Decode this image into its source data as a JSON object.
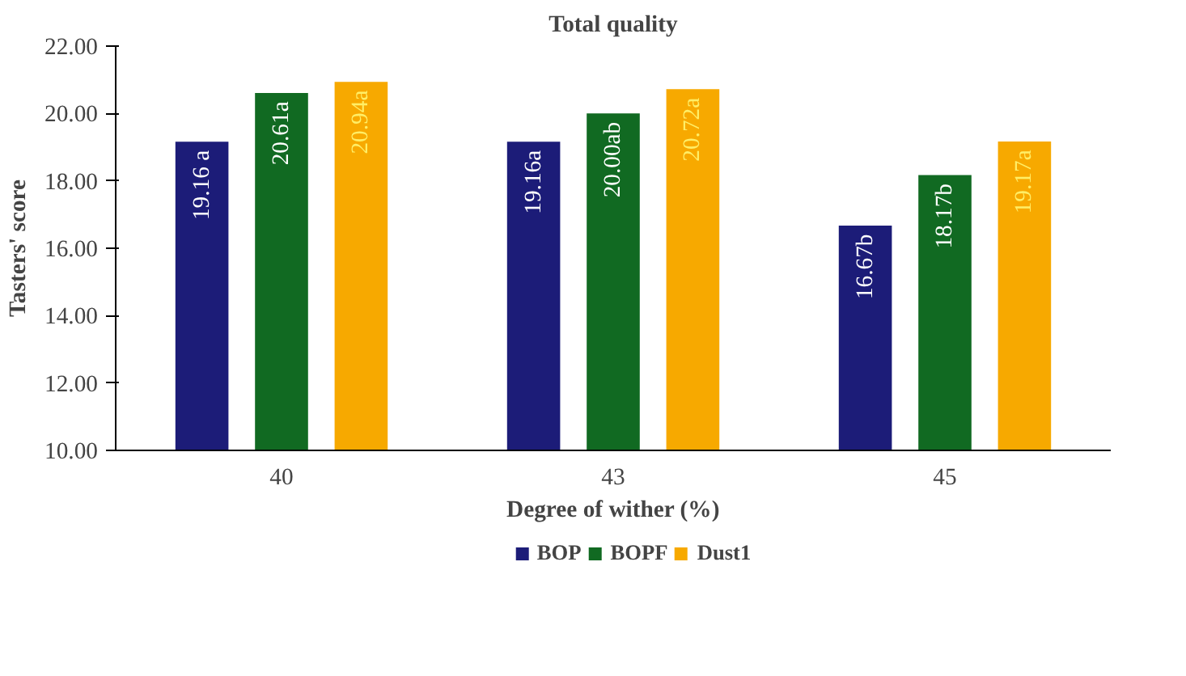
{
  "chart_data": {
    "type": "bar",
    "title": "Total quality",
    "xlabel": "Degree of wither (%)",
    "ylabel": "Tasters' score",
    "categories": [
      "40",
      "43",
      "45"
    ],
    "series": [
      {
        "name": "BOP",
        "color": "#1c1c78",
        "values": [
          19.16,
          19.16,
          16.67
        ],
        "value_labels": [
          "19.16 a",
          "19.16a",
          "16.67b"
        ]
      },
      {
        "name": "BOPF",
        "color": "#116a22",
        "values": [
          20.61,
          20.0,
          18.17
        ],
        "value_labels": [
          "20.61a",
          "20.00ab",
          "18.17b"
        ]
      },
      {
        "name": "Dust1",
        "color": "#f7a900",
        "values": [
          20.94,
          20.72,
          19.17
        ],
        "value_labels": [
          "20.94a",
          "20.72a",
          "19.17a"
        ]
      }
    ],
    "ylim": [
      10,
      22
    ],
    "yticks": [
      {
        "value": 10,
        "label": "10.00"
      },
      {
        "value": 12,
        "label": "12.00"
      },
      {
        "value": 14,
        "label": "14.00"
      },
      {
        "value": 16,
        "label": "16.00"
      },
      {
        "value": 18,
        "label": "18.00"
      },
      {
        "value": 20,
        "label": "20.00"
      },
      {
        "value": 22,
        "label": "22.00"
      }
    ],
    "grid": false,
    "legend": "bottom"
  }
}
